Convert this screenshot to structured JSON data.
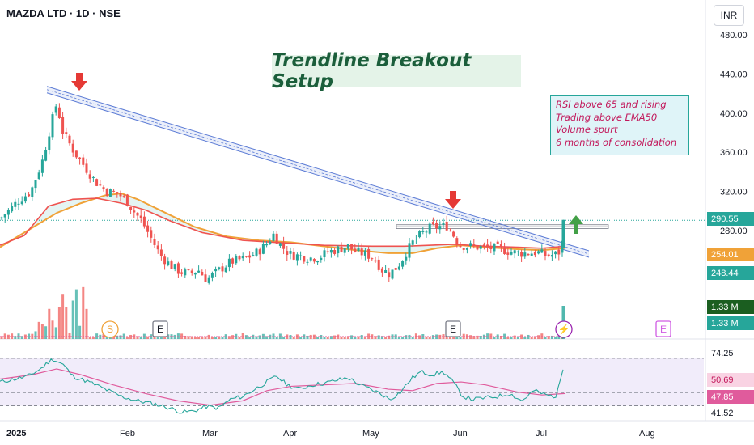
{
  "header": {
    "symbol_title": "MAZDA LTD · 1D · NSE",
    "currency_label": "INR"
  },
  "annotations": {
    "setup_title": "Trendline Breakout Setup",
    "criteria": [
      "RSI above 65 and rising",
      "Trading above EMA50",
      "Volume spurt",
      "6 months of consolidation"
    ]
  },
  "colors": {
    "up": "#26a69a",
    "down": "#ef5350",
    "ema_fast": "#ef5350",
    "ema_slow": "#f0a238",
    "trendline": "#5b7bd5",
    "rsi": "#26a69a",
    "rsi_ma": "#e05b9c",
    "vol_up": "#26a69a",
    "vol_down": "#ef5350",
    "arrow_down": "#e53935",
    "arrow_up": "#43a047"
  },
  "chart_data": {
    "type": "candlestick",
    "price_axis": {
      "range": [
        240,
        490
      ],
      "ticks": [
        "480.00",
        "440.00",
        "400.00",
        "360.00",
        "320.00",
        "280.00"
      ]
    },
    "time_axis": {
      "labels": [
        "2025",
        "Feb",
        "Mar",
        "Apr",
        "May",
        "Jun",
        "Jul",
        "Aug"
      ]
    },
    "price_waypoints": [
      [
        0,
        292
      ],
      [
        22,
        310
      ],
      [
        38,
        320
      ],
      [
        52,
        350
      ],
      [
        62,
        385
      ],
      [
        70,
        410
      ],
      [
        78,
        380
      ],
      [
        92,
        360
      ],
      [
        105,
        345
      ],
      [
        118,
        330
      ],
      [
        132,
        320
      ],
      [
        145,
        318
      ],
      [
        155,
        312
      ],
      [
        165,
        300
      ],
      [
        175,
        290
      ],
      [
        185,
        275
      ],
      [
        198,
        255
      ],
      [
        210,
        245
      ],
      [
        222,
        238
      ],
      [
        234,
        236
      ],
      [
        245,
        240
      ],
      [
        255,
        230
      ],
      [
        265,
        236
      ],
      [
        275,
        242
      ],
      [
        285,
        248
      ],
      [
        295,
        250
      ],
      [
        305,
        252
      ],
      [
        318,
        258
      ],
      [
        328,
        265
      ],
      [
        338,
        276
      ],
      [
        348,
        264
      ],
      [
        358,
        256
      ],
      [
        370,
        254
      ],
      [
        382,
        252
      ],
      [
        395,
        253
      ],
      [
        405,
        258
      ],
      [
        418,
        261
      ],
      [
        430,
        264
      ],
      [
        440,
        258
      ],
      [
        452,
        256
      ],
      [
        462,
        252
      ],
      [
        472,
        240
      ],
      [
        482,
        236
      ],
      [
        492,
        244
      ],
      [
        502,
        258
      ],
      [
        512,
        270
      ],
      [
        522,
        277
      ],
      [
        532,
        283
      ],
      [
        542,
        284
      ],
      [
        552,
        285
      ],
      [
        560,
        276
      ],
      [
        568,
        265
      ],
      [
        580,
        264
      ],
      [
        592,
        263
      ],
      [
        604,
        262
      ],
      [
        616,
        262
      ],
      [
        628,
        259
      ],
      [
        640,
        257
      ],
      [
        652,
        257
      ],
      [
        664,
        258
      ],
      [
        676,
        254
      ],
      [
        688,
        256
      ],
      [
        694,
        260
      ],
      [
        698,
        291
      ]
    ],
    "ema_fast": [
      [
        0,
        265
      ],
      [
        30,
        275
      ],
      [
        60,
        305
      ],
      [
        90,
        312
      ],
      [
        120,
        313
      ],
      [
        150,
        308
      ],
      [
        180,
        301
      ],
      [
        210,
        290
      ],
      [
        250,
        278
      ],
      [
        300,
        270
      ],
      [
        340,
        268
      ],
      [
        400,
        265
      ],
      [
        460,
        264
      ],
      [
        500,
        264
      ],
      [
        530,
        265
      ],
      [
        560,
        266
      ],
      [
        600,
        264
      ],
      [
        640,
        263
      ],
      [
        670,
        262
      ],
      [
        698,
        264
      ]
    ],
    "ema_slow": [
      [
        0,
        263
      ],
      [
        40,
        283
      ],
      [
        70,
        298
      ],
      [
        100,
        308
      ],
      [
        130,
        316
      ],
      [
        150,
        318
      ],
      [
        170,
        312
      ],
      [
        200,
        300
      ],
      [
        240,
        284
      ],
      [
        280,
        274
      ],
      [
        320,
        270
      ],
      [
        360,
        268
      ],
      [
        400,
        264
      ],
      [
        440,
        260
      ],
      [
        480,
        257
      ],
      [
        510,
        257
      ],
      [
        540,
        262
      ],
      [
        570,
        265
      ],
      [
        600,
        263
      ],
      [
        640,
        261
      ],
      [
        670,
        260
      ],
      [
        698,
        262
      ]
    ],
    "trendline": {
      "from": [
        58,
        424
      ],
      "to": [
        728,
        256
      ]
    },
    "resistance_zone": [
      282,
      286
    ],
    "current_price": "290.55",
    "price_labels": [
      "290.55",
      "254.01",
      "248.44"
    ],
    "volume_labels": [
      "1.33 M",
      "1.33 M"
    ],
    "events": [
      {
        "label": "S",
        "type": "split"
      },
      {
        "label": "E",
        "type": "earnings"
      },
      {
        "label": "E",
        "type": "earnings"
      },
      {
        "label": "⚡",
        "type": "news"
      },
      {
        "label": "E",
        "type": "earnings-upcoming"
      }
    ],
    "rsi": {
      "levels": [
        "74.25",
        "50.69",
        "47.85",
        "41.52"
      ],
      "waypoints": [
        [
          0,
          58
        ],
        [
          18,
          60
        ],
        [
          35,
          62
        ],
        [
          50,
          67
        ],
        [
          65,
          74
        ],
        [
          78,
          70
        ],
        [
          90,
          62
        ],
        [
          110,
          58
        ],
        [
          130,
          53
        ],
        [
          150,
          48
        ],
        [
          170,
          45
        ],
        [
          190,
          43
        ],
        [
          210,
          40
        ],
        [
          225,
          37
        ],
        [
          240,
          38
        ],
        [
          255,
          41
        ],
        [
          270,
          40
        ],
        [
          285,
          46
        ],
        [
          300,
          48
        ],
        [
          315,
          53
        ],
        [
          330,
          58
        ],
        [
          342,
          62
        ],
        [
          355,
          56
        ],
        [
          370,
          53
        ],
        [
          385,
          56
        ],
        [
          400,
          57
        ],
        [
          415,
          59
        ],
        [
          430,
          61
        ],
        [
          445,
          56
        ],
        [
          458,
          53
        ],
        [
          470,
          50
        ],
        [
          482,
          46
        ],
        [
          495,
          51
        ],
        [
          508,
          60
        ],
        [
          520,
          65
        ],
        [
          535,
          63
        ],
        [
          548,
          65
        ],
        [
          560,
          58
        ],
        [
          572,
          48
        ],
        [
          585,
          46
        ],
        [
          600,
          47
        ],
        [
          615,
          48
        ],
        [
          630,
          50
        ],
        [
          645,
          45
        ],
        [
          660,
          52
        ],
        [
          675,
          49
        ],
        [
          688,
          48
        ],
        [
          698,
          73
        ]
      ],
      "ma_waypoints": [
        [
          0,
          60
        ],
        [
          40,
          63
        ],
        [
          70,
          67
        ],
        [
          100,
          63
        ],
        [
          140,
          56
        ],
        [
          180,
          50
        ],
        [
          220,
          45
        ],
        [
          260,
          42
        ],
        [
          300,
          45
        ],
        [
          330,
          52
        ],
        [
          360,
          55
        ],
        [
          400,
          56
        ],
        [
          440,
          57
        ],
        [
          480,
          53
        ],
        [
          510,
          52
        ],
        [
          540,
          57
        ],
        [
          570,
          58
        ],
        [
          600,
          56
        ],
        [
          640,
          51
        ],
        [
          670,
          49
        ],
        [
          698,
          50
        ]
      ]
    }
  }
}
